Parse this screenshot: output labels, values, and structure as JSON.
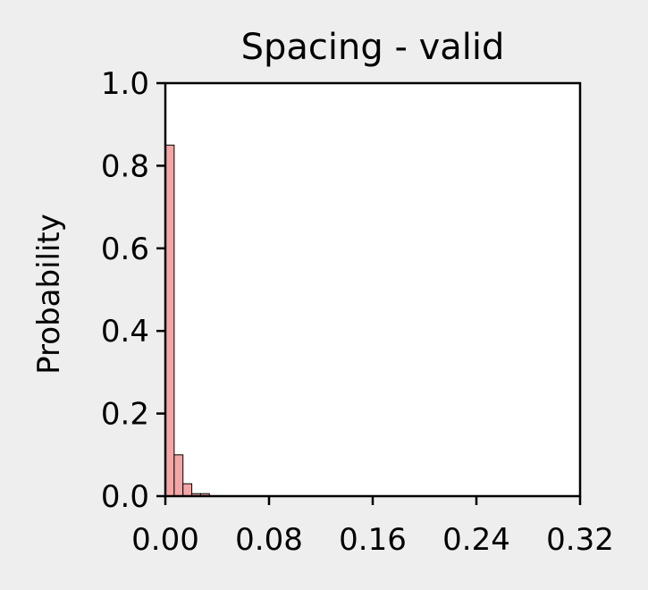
{
  "chart_data": {
    "type": "bar",
    "title": "Spacing - valid",
    "xlabel": "",
    "ylabel": "Probability",
    "xlim": [
      0,
      0.32
    ],
    "ylim": [
      0,
      1.0
    ],
    "xticks": [
      "0.00",
      "0.08",
      "0.16",
      "0.24",
      "0.32"
    ],
    "yticks": [
      "0.0",
      "0.2",
      "0.4",
      "0.6",
      "0.8",
      "1.0"
    ],
    "grid": false,
    "bin_edges": [
      0.0,
      0.0068,
      0.0136,
      0.0204,
      0.0272,
      0.034
    ],
    "values": [
      0.85,
      0.1,
      0.03,
      0.006,
      0.006
    ],
    "bar_color": "#f4a6a6",
    "edge_color": "#000000",
    "background_color": "#eeeeee",
    "plot_background_color": "#ffffff"
  }
}
